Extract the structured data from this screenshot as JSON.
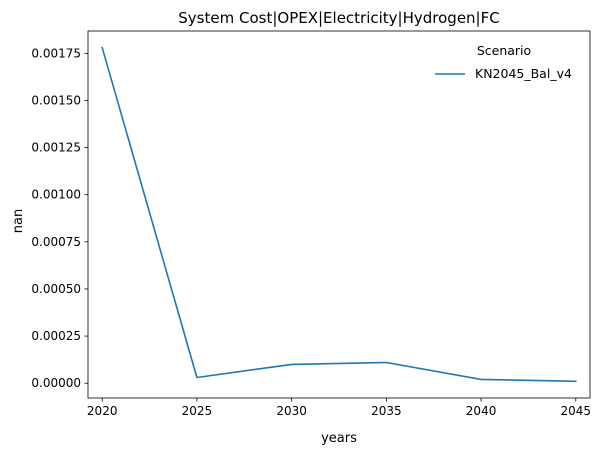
{
  "chart_data": {
    "type": "line",
    "title": "System Cost|OPEX|Electricity|Hydrogen|FC",
    "xlabel": "years",
    "ylabel": "nan",
    "x": [
      2020,
      2025,
      2030,
      2035,
      2040,
      2045
    ],
    "series": [
      {
        "name": "KN2045_Bal_v4",
        "color": "#1f77b4",
        "values": [
          0.00178,
          3e-05,
          0.0001,
          0.00011,
          2e-05,
          1e-05
        ]
      }
    ],
    "x_ticks": [
      "2020",
      "2025",
      "2030",
      "2035",
      "2040",
      "2045"
    ],
    "x_tick_values": [
      2020,
      2025,
      2030,
      2035,
      2040,
      2045
    ],
    "y_ticks": [
      "0.00000",
      "0.00025",
      "0.00050",
      "0.00075",
      "0.00100",
      "0.00125",
      "0.00150",
      "0.00175"
    ],
    "y_tick_values": [
      0,
      0.00025,
      0.0005,
      0.00075,
      0.001,
      0.00125,
      0.0015,
      0.00175
    ],
    "xlim": [
      2019.25,
      2045.75
    ],
    "ylim": [
      -7.85e-05,
      0.0018685
    ],
    "legend": {
      "title": "Scenario",
      "placement": "top-right"
    },
    "grid": false
  }
}
